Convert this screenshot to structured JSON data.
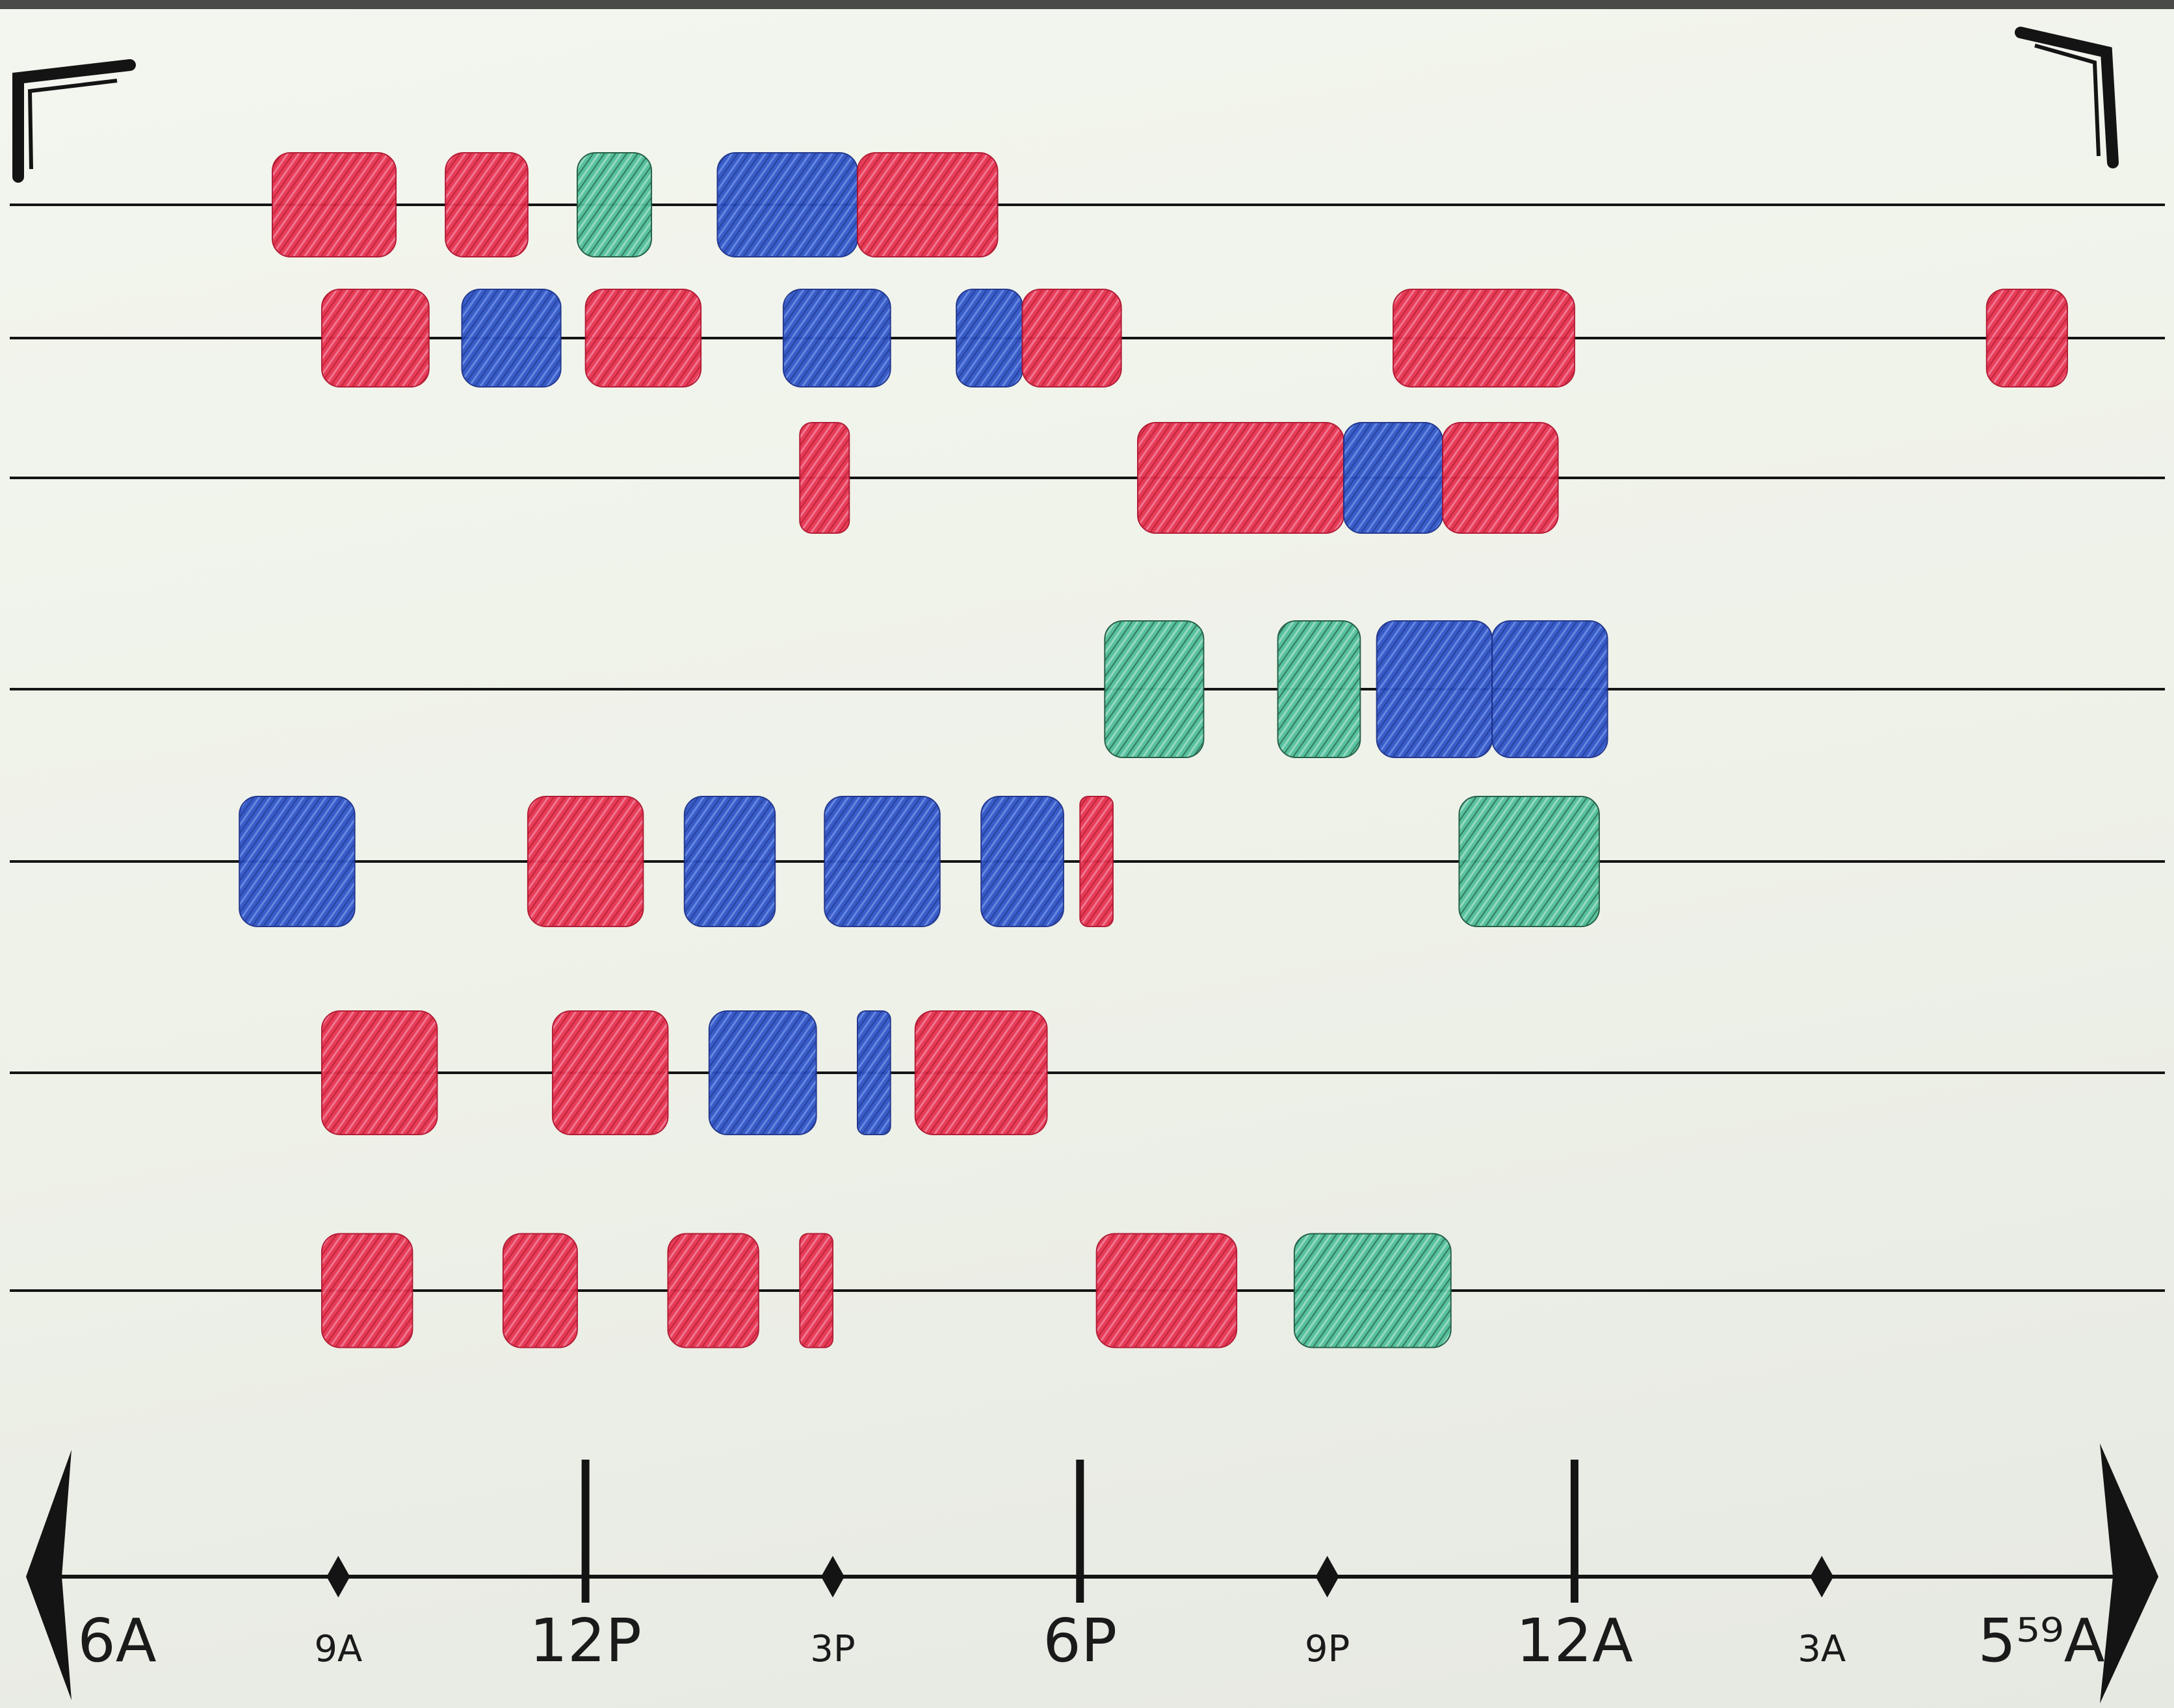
{
  "chart_data": {
    "type": "timeline",
    "xlabel": "",
    "ylabel": "",
    "x_range": [
      0,
      23.98
    ],
    "axis_ticks": [
      {
        "label": "6A",
        "hour": 0,
        "kind": "end"
      },
      {
        "label": "9A",
        "hour": 3,
        "kind": "minor"
      },
      {
        "label": "12P",
        "hour": 6,
        "kind": "major"
      },
      {
        "label": "3P",
        "hour": 9,
        "kind": "minor"
      },
      {
        "label": "6P",
        "hour": 12,
        "kind": "major"
      },
      {
        "label": "9P",
        "hour": 15,
        "kind": "minor"
      },
      {
        "label": "12A",
        "hour": 18,
        "kind": "major"
      },
      {
        "label": "3A",
        "hour": 21,
        "kind": "minor"
      },
      {
        "label": "5⁵⁹A",
        "hour": 23.98,
        "kind": "end"
      }
    ],
    "colors": {
      "red": "#e8334f",
      "blue": "#2f55c8",
      "green": "#4fbf9a",
      "ink": "#141414"
    },
    "rows": [
      {
        "blocks": [
          {
            "start": 2.2,
            "end": 3.7,
            "color": "red"
          },
          {
            "start": 4.3,
            "end": 5.3,
            "color": "red"
          },
          {
            "start": 5.9,
            "end": 6.8,
            "color": "green"
          },
          {
            "start": 7.6,
            "end": 9.3,
            "color": "blue"
          },
          {
            "start": 9.3,
            "end": 11.0,
            "color": "red"
          }
        ]
      },
      {
        "blocks": [
          {
            "start": 2.8,
            "end": 4.1,
            "color": "red"
          },
          {
            "start": 4.5,
            "end": 5.7,
            "color": "blue"
          },
          {
            "start": 6.0,
            "end": 7.4,
            "color": "red"
          },
          {
            "start": 8.4,
            "end": 9.7,
            "color": "blue"
          },
          {
            "start": 10.5,
            "end": 11.3,
            "color": "blue"
          },
          {
            "start": 11.3,
            "end": 12.5,
            "color": "red"
          },
          {
            "start": 15.8,
            "end": 18.0,
            "color": "red"
          },
          {
            "start": 23.0,
            "end": 23.98,
            "color": "red"
          }
        ]
      },
      {
        "blocks": [
          {
            "start": 8.6,
            "end": 9.2,
            "color": "red"
          },
          {
            "start": 12.7,
            "end": 15.2,
            "color": "red"
          },
          {
            "start": 15.2,
            "end": 16.4,
            "color": "blue"
          },
          {
            "start": 16.4,
            "end": 17.8,
            "color": "red"
          }
        ]
      },
      {
        "blocks": [
          {
            "start": 12.3,
            "end": 13.5,
            "color": "green"
          },
          {
            "start": 14.4,
            "end": 15.4,
            "color": "green"
          },
          {
            "start": 15.6,
            "end": 17.0,
            "color": "blue"
          },
          {
            "start": 17.0,
            "end": 18.4,
            "color": "blue"
          }
        ]
      },
      {
        "blocks": [
          {
            "start": 1.8,
            "end": 3.2,
            "color": "blue"
          },
          {
            "start": 5.3,
            "end": 6.7,
            "color": "red"
          },
          {
            "start": 7.2,
            "end": 8.3,
            "color": "blue"
          },
          {
            "start": 8.9,
            "end": 10.3,
            "color": "blue"
          },
          {
            "start": 10.8,
            "end": 11.8,
            "color": "blue"
          },
          {
            "start": 12.0,
            "end": 12.4,
            "color": "red"
          },
          {
            "start": 16.6,
            "end": 18.3,
            "color": "green"
          }
        ]
      },
      {
        "blocks": [
          {
            "start": 2.8,
            "end": 4.2,
            "color": "red"
          },
          {
            "start": 5.6,
            "end": 7.0,
            "color": "red"
          },
          {
            "start": 7.5,
            "end": 8.8,
            "color": "blue"
          },
          {
            "start": 9.3,
            "end": 9.7,
            "color": "blue"
          },
          {
            "start": 10.0,
            "end": 11.6,
            "color": "red"
          }
        ]
      },
      {
        "blocks": [
          {
            "start": 2.8,
            "end": 3.9,
            "color": "red"
          },
          {
            "start": 5.0,
            "end": 5.9,
            "color": "red"
          },
          {
            "start": 7.0,
            "end": 8.1,
            "color": "red"
          },
          {
            "start": 8.6,
            "end": 9.0,
            "color": "red"
          },
          {
            "start": 12.2,
            "end": 13.9,
            "color": "red"
          },
          {
            "start": 14.6,
            "end": 16.5,
            "color": "green"
          }
        ]
      }
    ]
  }
}
